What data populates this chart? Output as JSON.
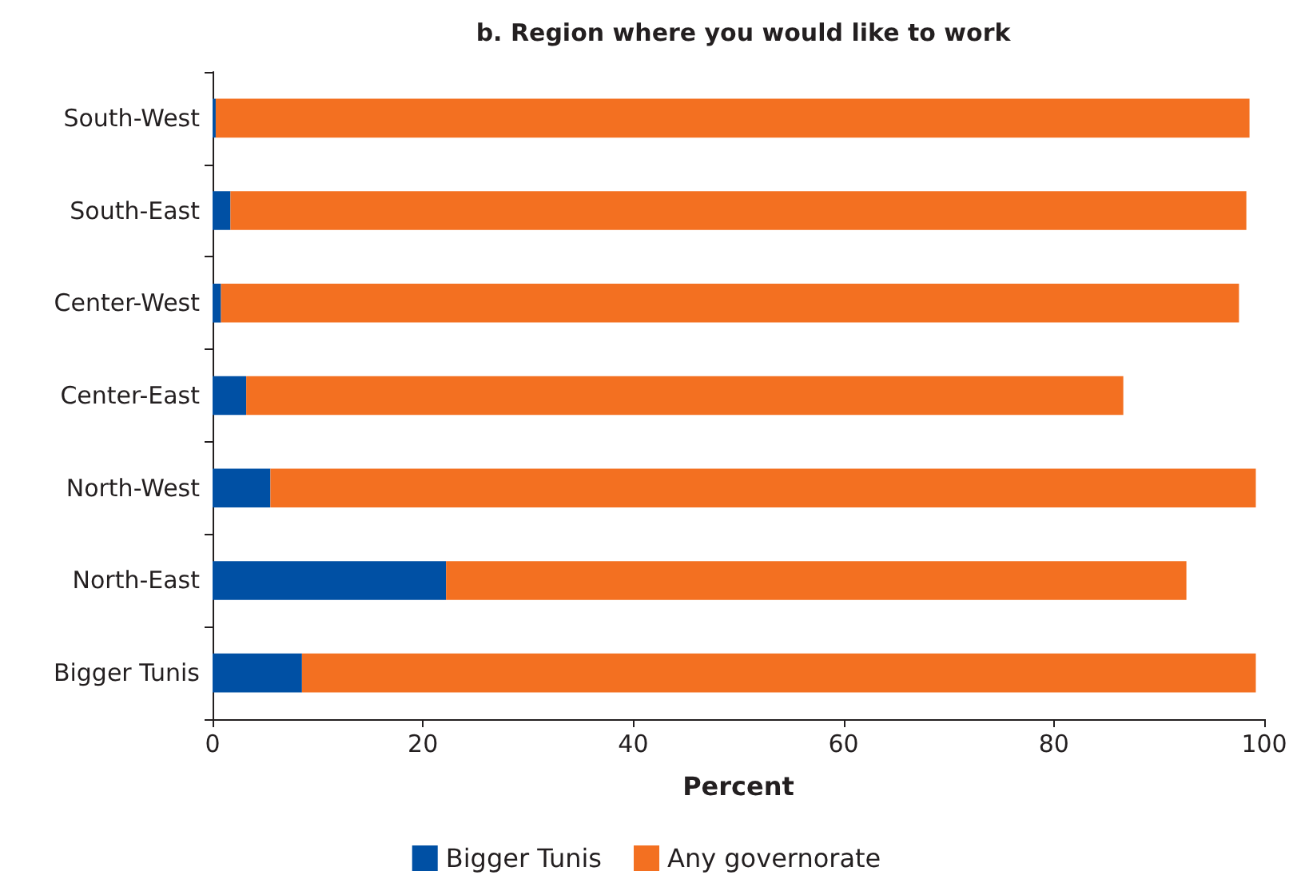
{
  "chart_data": {
    "type": "bar",
    "orientation": "horizontal",
    "stacked": true,
    "title": "b. Region where you would like to work",
    "xlabel": "Percent",
    "categories": [
      "South-West",
      "South-East",
      "Center-West",
      "Center-East",
      "North-West",
      "North-East",
      "Bigger Tunis"
    ],
    "series": [
      {
        "name": "Bigger Tunis",
        "color": "#0050a4",
        "values": [
          0.3,
          1.7,
          0.8,
          3.2,
          5.5,
          22.2,
          8.5
        ]
      },
      {
        "name": "Any governorate",
        "color": "#f37021",
        "values": [
          98.3,
          96.6,
          96.8,
          83.4,
          93.7,
          70.4,
          90.7
        ]
      }
    ],
    "xlim": [
      0,
      100
    ],
    "xticks": [
      0,
      20,
      40,
      60,
      80,
      100
    ],
    "grid": false,
    "legend": "bottom"
  }
}
